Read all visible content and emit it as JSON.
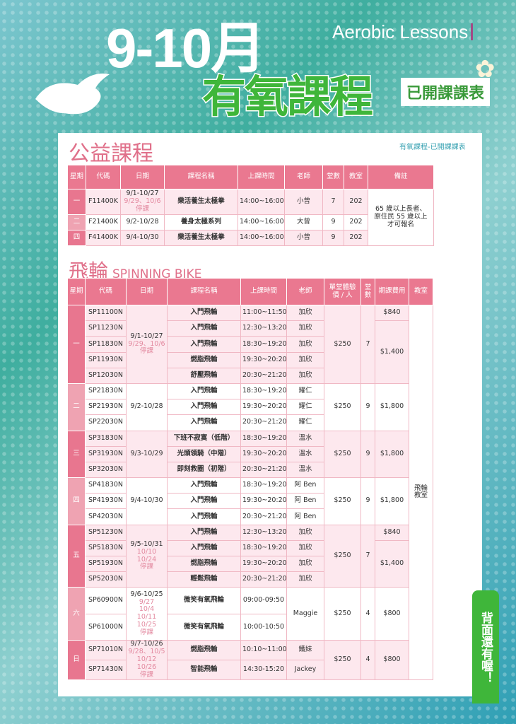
{
  "header": {
    "months": "9-10月",
    "english": "Aerobic Lessons",
    "title": "有氧課程",
    "badge": "已開課課表"
  },
  "breadcrumb": "有氧課程-已開課課表",
  "public": {
    "title": "公益課程",
    "columns": [
      "星期",
      "代碼",
      "日期",
      "課程名稱",
      "上課時間",
      "老師",
      "堂數",
      "教室",
      "備註"
    ],
    "remark": "65 歲以上長者、原住民 55 歲以上才可報名",
    "rows": [
      {
        "day": "一",
        "code": "F11400K",
        "date": "9/1-10/27",
        "note": "9/29、10/6 停課",
        "name": "樂活養生太極拳",
        "time": "14:00~16:00",
        "teacher": "小曾",
        "sessions": "7",
        "room": "202"
      },
      {
        "day": "二",
        "code": "F21400K",
        "date": "9/2-10/28",
        "note": "",
        "name": "養身太極系列",
        "time": "14:00~16:00",
        "teacher": "大曾",
        "sessions": "9",
        "room": "202"
      },
      {
        "day": "四",
        "code": "F41400K",
        "date": "9/4-10/30",
        "note": "",
        "name": "樂活養生太極拳",
        "time": "14:00~16:00",
        "teacher": "小曾",
        "sessions": "9",
        "room": "202"
      }
    ]
  },
  "spinning": {
    "title": "飛輪",
    "subtitle": "SPINNING BIKE",
    "columns": [
      "星期",
      "代碼",
      "日期",
      "課程名稱",
      "上課時間",
      "老師",
      "單堂體驗價 / 人",
      "堂數",
      "期課費用",
      "教室"
    ],
    "room": "飛輪教室",
    "groups": [
      {
        "day": "一",
        "date": "9/1-10/27",
        "note": [
          "9/29、10/6",
          "停課"
        ],
        "price": "$250",
        "sessions": "7",
        "fees": [
          {
            "value": "$840",
            "rows": 1
          },
          {
            "value": "$1,400",
            "rows": 4
          }
        ],
        "rows": [
          {
            "code": "SP11100N",
            "name": "入門飛輪",
            "time": "11:00~11:50",
            "teacher": "加欣"
          },
          {
            "code": "SP11230N",
            "name": "入門飛輪",
            "time": "12:30~13:20",
            "teacher": "加欣"
          },
          {
            "code": "SP11830N",
            "name": "入門飛輪",
            "time": "18:30~19:20",
            "teacher": "加欣"
          },
          {
            "code": "SP11930N",
            "name": "燃脂飛輪",
            "time": "19:30~20:20",
            "teacher": "加欣"
          },
          {
            "code": "SP12030N",
            "name": "舒壓飛輪",
            "time": "20:30~21:20",
            "teacher": "加欣"
          }
        ]
      },
      {
        "day": "二",
        "date": "9/2-10/28",
        "note": [],
        "price": "$250",
        "sessions": "9",
        "fees": [
          {
            "value": "$1,800",
            "rows": 3
          }
        ],
        "rows": [
          {
            "code": "SP21830N",
            "name": "入門飛輪",
            "time": "18:30~19:20",
            "teacher": "耀仁"
          },
          {
            "code": "SP21930N",
            "name": "入門飛輪",
            "time": "19:30~20:20",
            "teacher": "耀仁"
          },
          {
            "code": "SP22030N",
            "name": "入門飛輪",
            "time": "20:30~21:20",
            "teacher": "耀仁"
          }
        ]
      },
      {
        "day": "三",
        "date": "9/3-10/29",
        "note": [],
        "price": "$250",
        "sessions": "9",
        "fees": [
          {
            "value": "$1,800",
            "rows": 3
          }
        ],
        "rows": [
          {
            "code": "SP31830N",
            "name": "下班不寂寞（低階）",
            "time": "18:30~19:20",
            "teacher": "溫水"
          },
          {
            "code": "SP31930N",
            "name": "光頭領騎（中階）",
            "time": "19:30~20:20",
            "teacher": "溫水"
          },
          {
            "code": "SP32030N",
            "name": "即刻救圈（初階）",
            "time": "20:30~21:20",
            "teacher": "溫水"
          }
        ]
      },
      {
        "day": "四",
        "date": "9/4-10/30",
        "note": [],
        "price": "$250",
        "sessions": "9",
        "fees": [
          {
            "value": "$1,800",
            "rows": 3
          }
        ],
        "rows": [
          {
            "code": "SP41830N",
            "name": "入門飛輪",
            "time": "18:30~19:20",
            "teacher": "阿 Ben"
          },
          {
            "code": "SP41930N",
            "name": "入門飛輪",
            "time": "19:30~20:20",
            "teacher": "阿 Ben"
          },
          {
            "code": "SP42030N",
            "name": "入門飛輪",
            "time": "20:30~21:20",
            "teacher": "阿 Ben"
          }
        ]
      },
      {
        "day": "五",
        "date": "9/5-10/31",
        "note": [
          "10/10",
          "10/24",
          "停課"
        ],
        "price": "$250",
        "sessions": "7",
        "fees": [
          {
            "value": "$840",
            "rows": 1
          },
          {
            "value": "$1,400",
            "rows": 3
          }
        ],
        "rows": [
          {
            "code": "SP51230N",
            "name": "入門飛輪",
            "time": "12:30~13:20",
            "teacher": "加欣"
          },
          {
            "code": "SP51830N",
            "name": "入門飛輪",
            "time": "18:30~19:20",
            "teacher": "加欣"
          },
          {
            "code": "SP51930N",
            "name": "燃脂飛輪",
            "time": "19:30~20:20",
            "teacher": "加欣"
          },
          {
            "code": "SP52030N",
            "name": "輕鬆飛輪",
            "time": "20:30~21:20",
            "teacher": "加欣"
          }
        ]
      },
      {
        "day": "六",
        "date": "9/6-10/25",
        "note": [
          "9/27",
          "10/4",
          "10/11",
          "10/25",
          "停課"
        ],
        "price": "$250",
        "sessions": "4",
        "fees": [
          {
            "value": "$800",
            "rows": 2
          }
        ],
        "teacher_merged": "Maggie",
        "tall": true,
        "rows": [
          {
            "code": "SP60900N",
            "name": "微笑有氧飛輪",
            "time": "09:00-09:50"
          },
          {
            "code": "SP61000N",
            "name": "微笑有氧飛輪",
            "time": "10:00-10:50"
          }
        ]
      },
      {
        "day": "日",
        "date": "9/7-10/26",
        "note": [
          "9/28、10/5",
          "10/12",
          "10/26",
          "停課"
        ],
        "price": "$250",
        "sessions": "4",
        "fees": [
          {
            "value": "$800",
            "rows": 2
          }
        ],
        "rows": [
          {
            "code": "SP71010N",
            "name": "燃脂飛輪",
            "time": "10:10~11:00",
            "teacher": "鐵妹"
          },
          {
            "code": "SP71430N",
            "name": "智能飛輪",
            "time": "14:30-15:20",
            "teacher": "Jackey"
          }
        ]
      }
    ]
  },
  "side_note": "背面還有喔！",
  "colors": {
    "pink": "#e8768f",
    "light_pink": "#efa3b2",
    "green": "#3fb63a",
    "teal": "#3fae9f"
  }
}
